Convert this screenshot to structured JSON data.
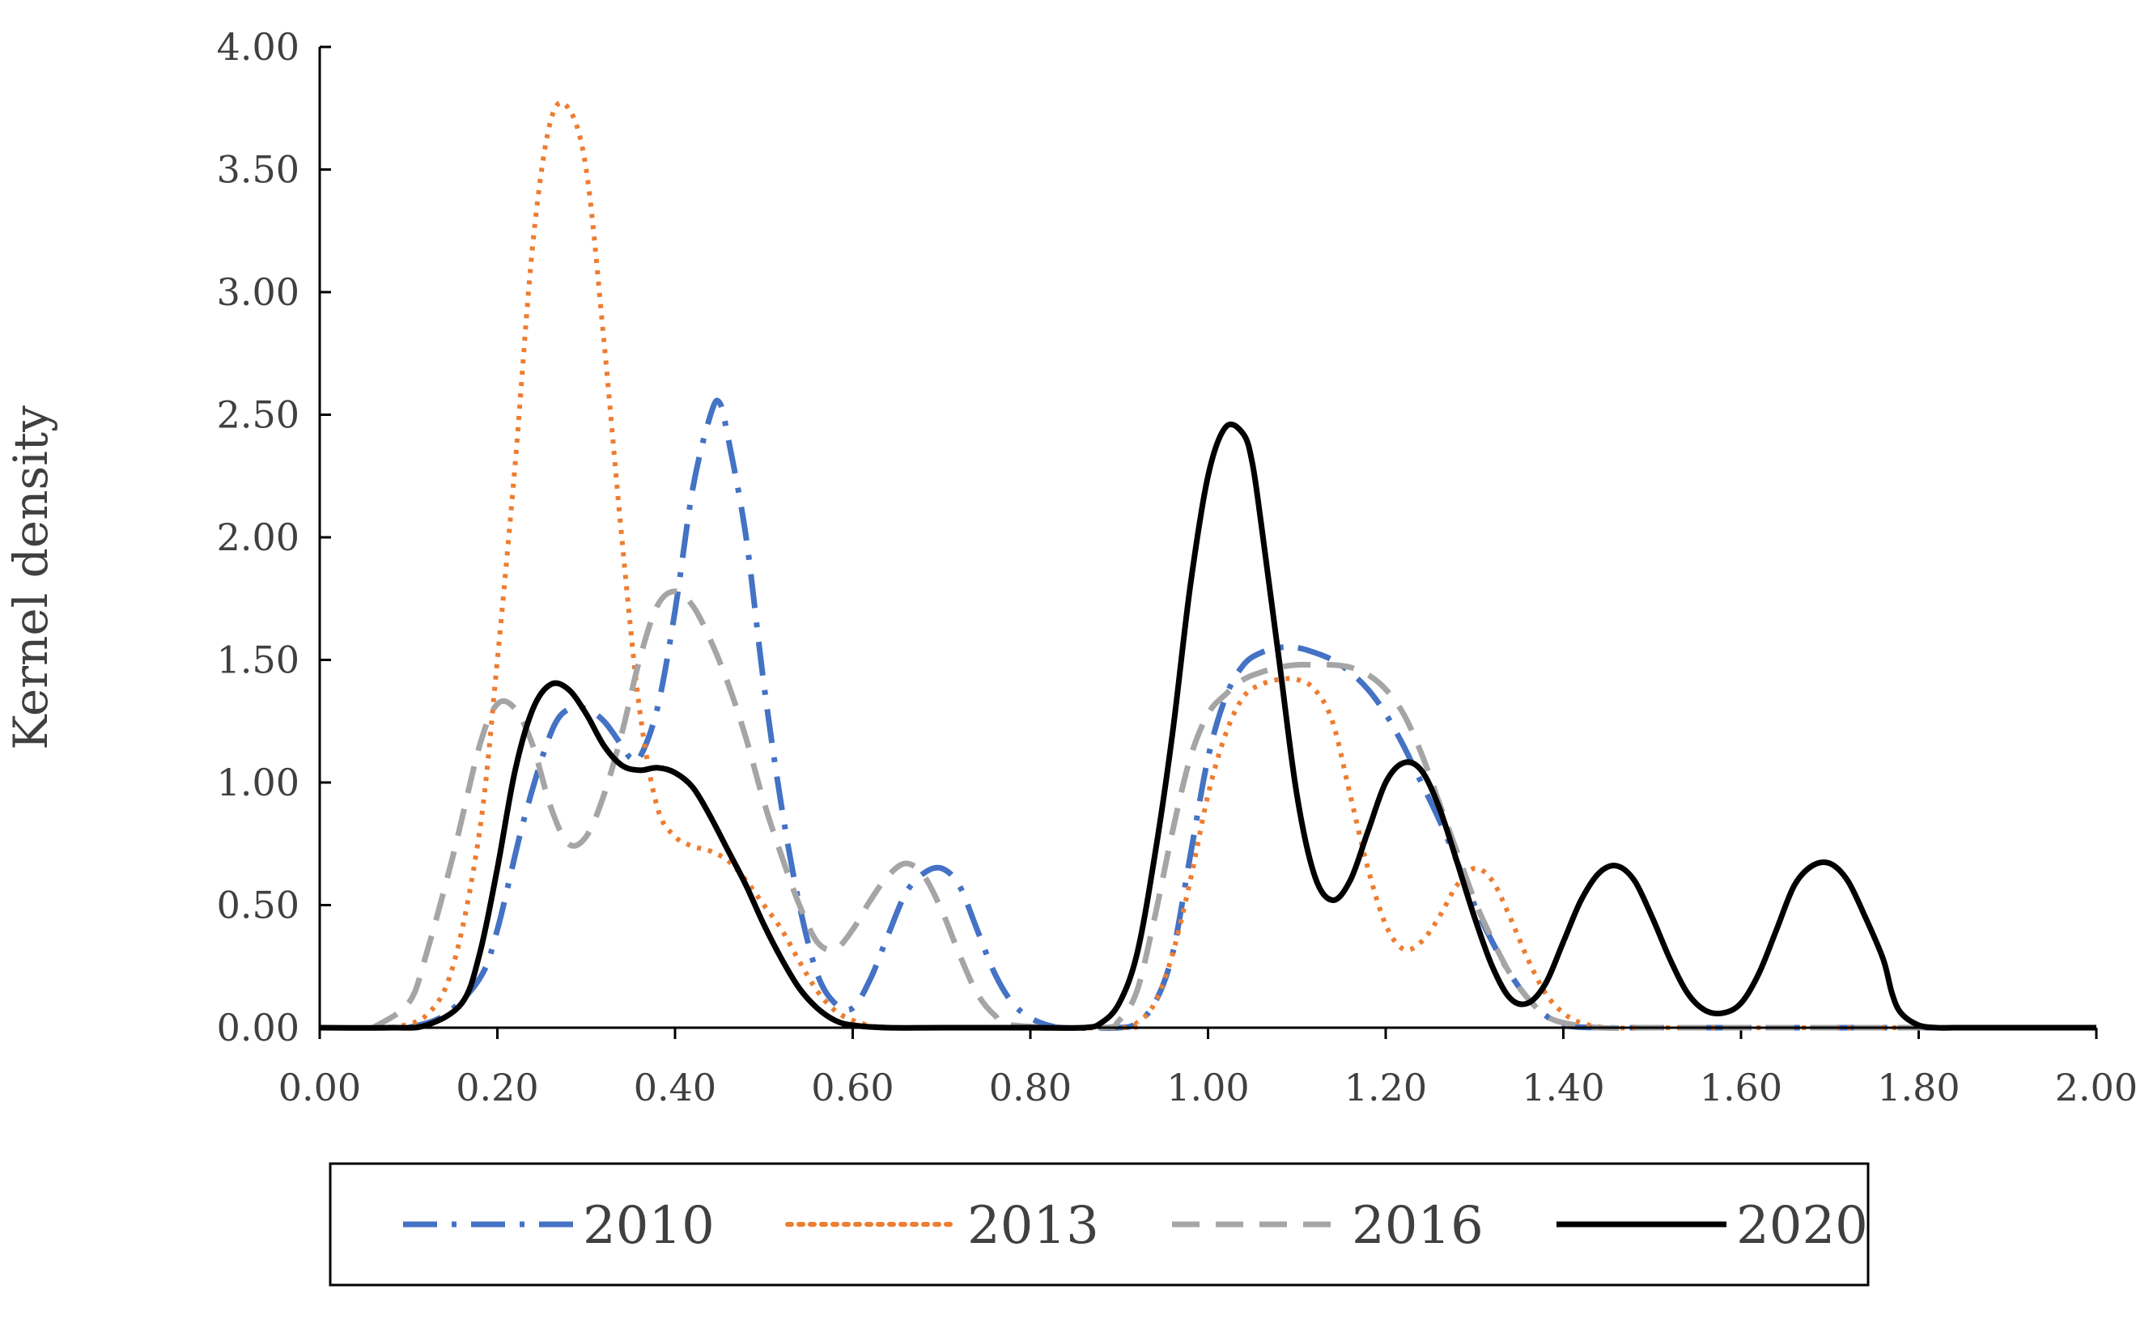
{
  "chart_data": {
    "type": "line",
    "xlabel": "",
    "ylabel": "Kernel density",
    "xlim": [
      0,
      2
    ],
    "ylim": [
      0,
      4
    ],
    "x_ticks": [
      "0.00",
      "0.20",
      "0.40",
      "0.60",
      "0.80",
      "1.00",
      "1.20",
      "1.40",
      "1.60",
      "1.80",
      "2.00"
    ],
    "y_ticks": [
      "0.00",
      "0.50",
      "1.00",
      "1.50",
      "2.00",
      "2.50",
      "3.00",
      "3.50",
      "4.00"
    ],
    "grid": false,
    "legend_position": "bottom",
    "series": [
      {
        "name": "2010",
        "color": "#4472C4",
        "dash": "dash-dot",
        "x": [
          0.1,
          0.14,
          0.18,
          0.2,
          0.23,
          0.26,
          0.28,
          0.3,
          0.32,
          0.34,
          0.35,
          0.36,
          0.38,
          0.4,
          0.42,
          0.44,
          0.45,
          0.46,
          0.48,
          0.5,
          0.52,
          0.54,
          0.56,
          0.58,
          0.6,
          0.62,
          0.64,
          0.66,
          0.68,
          0.7,
          0.72,
          0.74,
          0.76,
          0.78,
          0.8,
          0.82,
          0.84,
          0.9,
          0.92,
          0.94,
          0.96,
          0.98,
          1.0,
          1.02,
          1.04,
          1.06,
          1.08,
          1.1,
          1.12,
          1.14,
          1.16,
          1.18,
          1.2,
          1.22,
          1.24,
          1.26,
          1.28,
          1.3,
          1.32,
          1.34,
          1.36,
          1.38,
          1.4,
          1.44,
          1.5,
          1.6,
          1.7,
          1.8,
          1.9
        ],
        "y": [
          0.0,
          0.05,
          0.2,
          0.4,
          0.85,
          1.2,
          1.3,
          1.3,
          1.25,
          1.15,
          1.1,
          1.1,
          1.3,
          1.7,
          2.2,
          2.5,
          2.55,
          2.4,
          2.0,
          1.4,
          0.9,
          0.5,
          0.22,
          0.1,
          0.08,
          0.2,
          0.38,
          0.55,
          0.63,
          0.65,
          0.58,
          0.4,
          0.22,
          0.1,
          0.04,
          0.01,
          0.0,
          0.0,
          0.02,
          0.1,
          0.3,
          0.7,
          1.1,
          1.35,
          1.48,
          1.53,
          1.55,
          1.55,
          1.53,
          1.5,
          1.45,
          1.38,
          1.28,
          1.15,
          1.0,
          0.85,
          0.68,
          0.5,
          0.35,
          0.22,
          0.12,
          0.05,
          0.01,
          0.0,
          0.0,
          0.0,
          0.0,
          0.0,
          0.0
        ]
      },
      {
        "name": "2013",
        "color": "#ED7D31",
        "dash": "dot",
        "x": [
          0.08,
          0.12,
          0.15,
          0.18,
          0.2,
          0.22,
          0.24,
          0.26,
          0.28,
          0.3,
          0.32,
          0.34,
          0.36,
          0.38,
          0.4,
          0.42,
          0.44,
          0.46,
          0.48,
          0.5,
          0.52,
          0.54,
          0.56,
          0.58,
          0.6,
          0.62,
          0.66,
          0.9,
          0.92,
          0.94,
          0.96,
          0.98,
          1.0,
          1.02,
          1.04,
          1.06,
          1.08,
          1.1,
          1.12,
          1.14,
          1.16,
          1.18,
          1.2,
          1.22,
          1.24,
          1.26,
          1.28,
          1.3,
          1.32,
          1.34,
          1.36,
          1.38,
          1.4,
          1.42,
          1.45,
          1.5,
          1.6,
          1.7,
          1.8,
          1.9
        ],
        "y": [
          0.0,
          0.05,
          0.25,
          0.8,
          1.5,
          2.3,
          3.2,
          3.7,
          3.75,
          3.5,
          2.8,
          2.0,
          1.3,
          0.9,
          0.78,
          0.74,
          0.72,
          0.68,
          0.6,
          0.5,
          0.4,
          0.27,
          0.15,
          0.07,
          0.03,
          0.01,
          0.0,
          0.0,
          0.02,
          0.1,
          0.3,
          0.6,
          0.95,
          1.2,
          1.35,
          1.4,
          1.42,
          1.42,
          1.38,
          1.25,
          0.95,
          0.65,
          0.42,
          0.32,
          0.35,
          0.45,
          0.58,
          0.65,
          0.6,
          0.45,
          0.28,
          0.14,
          0.06,
          0.02,
          0.0,
          0.0,
          0.0,
          0.0,
          0.0,
          0.0
        ]
      },
      {
        "name": "2016",
        "color": "#A5A5A5",
        "dash": "dash",
        "x": [
          0.06,
          0.1,
          0.12,
          0.15,
          0.18,
          0.2,
          0.22,
          0.24,
          0.26,
          0.28,
          0.3,
          0.32,
          0.34,
          0.36,
          0.38,
          0.4,
          0.42,
          0.44,
          0.46,
          0.48,
          0.5,
          0.52,
          0.54,
          0.56,
          0.58,
          0.6,
          0.62,
          0.64,
          0.66,
          0.68,
          0.7,
          0.72,
          0.74,
          0.76,
          0.78,
          0.88,
          0.9,
          0.92,
          0.94,
          0.96,
          0.98,
          1.0,
          1.02,
          1.04,
          1.06,
          1.08,
          1.1,
          1.12,
          1.14,
          1.16,
          1.18,
          1.2,
          1.22,
          1.24,
          1.26,
          1.28,
          1.3,
          1.32,
          1.34,
          1.36,
          1.38,
          1.4,
          1.44,
          1.5,
          1.6,
          1.7,
          1.8,
          1.9
        ],
        "y": [
          0.0,
          0.1,
          0.3,
          0.7,
          1.15,
          1.32,
          1.3,
          1.15,
          0.9,
          0.75,
          0.78,
          0.95,
          1.2,
          1.5,
          1.72,
          1.78,
          1.72,
          1.58,
          1.4,
          1.18,
          0.92,
          0.7,
          0.5,
          0.35,
          0.32,
          0.4,
          0.52,
          0.62,
          0.67,
          0.62,
          0.48,
          0.3,
          0.14,
          0.05,
          0.01,
          0.0,
          0.03,
          0.15,
          0.45,
          0.8,
          1.1,
          1.28,
          1.36,
          1.42,
          1.45,
          1.47,
          1.48,
          1.48,
          1.48,
          1.47,
          1.44,
          1.38,
          1.28,
          1.12,
          0.92,
          0.72,
          0.52,
          0.36,
          0.22,
          0.12,
          0.05,
          0.02,
          0.0,
          0.0,
          0.0,
          0.0,
          0.0,
          0.0
        ]
      },
      {
        "name": "2020",
        "color": "#000000",
        "dash": "solid",
        "x": [
          0.0,
          0.08,
          0.12,
          0.16,
          0.18,
          0.2,
          0.22,
          0.24,
          0.26,
          0.28,
          0.3,
          0.32,
          0.34,
          0.36,
          0.38,
          0.4,
          0.42,
          0.44,
          0.46,
          0.48,
          0.5,
          0.52,
          0.54,
          0.56,
          0.58,
          0.6,
          0.64,
          0.7,
          0.8,
          0.86,
          0.88,
          0.9,
          0.92,
          0.94,
          0.96,
          0.98,
          1.0,
          1.02,
          1.04,
          1.05,
          1.06,
          1.08,
          1.1,
          1.12,
          1.14,
          1.16,
          1.18,
          1.2,
          1.22,
          1.24,
          1.26,
          1.28,
          1.3,
          1.32,
          1.34,
          1.36,
          1.38,
          1.4,
          1.42,
          1.44,
          1.46,
          1.48,
          1.5,
          1.52,
          1.54,
          1.56,
          1.58,
          1.6,
          1.62,
          1.64,
          1.66,
          1.68,
          1.7,
          1.72,
          1.74,
          1.76,
          1.77,
          1.78,
          1.8,
          1.82,
          1.84,
          1.86,
          1.88,
          1.9,
          1.92,
          2.0
        ],
        "y": [
          0.0,
          0.0,
          0.01,
          0.1,
          0.3,
          0.65,
          1.05,
          1.3,
          1.4,
          1.38,
          1.28,
          1.15,
          1.07,
          1.05,
          1.06,
          1.04,
          0.98,
          0.86,
          0.72,
          0.58,
          0.42,
          0.28,
          0.16,
          0.08,
          0.03,
          0.01,
          0.0,
          0.0,
          0.0,
          0.0,
          0.02,
          0.1,
          0.3,
          0.7,
          1.2,
          1.8,
          2.25,
          2.45,
          2.42,
          2.3,
          2.05,
          1.5,
          0.95,
          0.62,
          0.52,
          0.6,
          0.8,
          1.0,
          1.08,
          1.05,
          0.9,
          0.68,
          0.45,
          0.25,
          0.12,
          0.1,
          0.18,
          0.35,
          0.52,
          0.63,
          0.66,
          0.6,
          0.45,
          0.28,
          0.14,
          0.07,
          0.06,
          0.1,
          0.22,
          0.4,
          0.58,
          0.66,
          0.67,
          0.6,
          0.45,
          0.28,
          0.14,
          0.06,
          0.01,
          0.0,
          0.0,
          0.0,
          0.0,
          0.0,
          0.0,
          0.0
        ]
      }
    ]
  }
}
